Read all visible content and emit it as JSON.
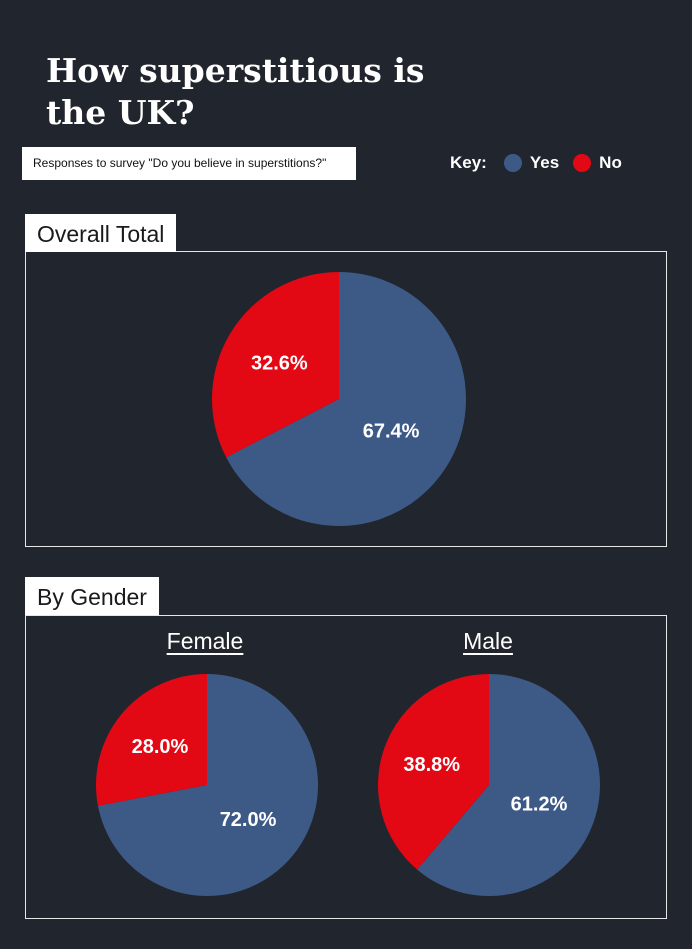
{
  "header": {
    "title": "How superstitious is the UK?",
    "subtitle": "Responses to survey \"Do you believe in superstitions?\""
  },
  "key": {
    "label": "Key:",
    "items": [
      {
        "name": "Yes",
        "color": "#3d5a87"
      },
      {
        "name": "No",
        "color": "#e20814"
      }
    ]
  },
  "sections": {
    "overall": "Overall Total",
    "gender": "By Gender"
  },
  "chart_data": [
    {
      "type": "pie",
      "title": "Overall Total",
      "categories": [
        "Yes",
        "No"
      ],
      "values": [
        67.4,
        32.6
      ],
      "labels": [
        "67.4%",
        "32.6%"
      ],
      "colors": [
        "#3d5a87",
        "#e20814"
      ]
    },
    {
      "type": "pie",
      "title": "Female",
      "categories": [
        "Yes",
        "No"
      ],
      "values": [
        72.0,
        28.0
      ],
      "labels": [
        "72.0%",
        "28.0%"
      ],
      "colors": [
        "#3d5a87",
        "#e20814"
      ]
    },
    {
      "type": "pie",
      "title": "Male",
      "categories": [
        "Yes",
        "No"
      ],
      "values": [
        61.2,
        38.8
      ],
      "labels": [
        "61.2%",
        "38.8%"
      ],
      "colors": [
        "#3d5a87",
        "#e20814"
      ]
    }
  ]
}
